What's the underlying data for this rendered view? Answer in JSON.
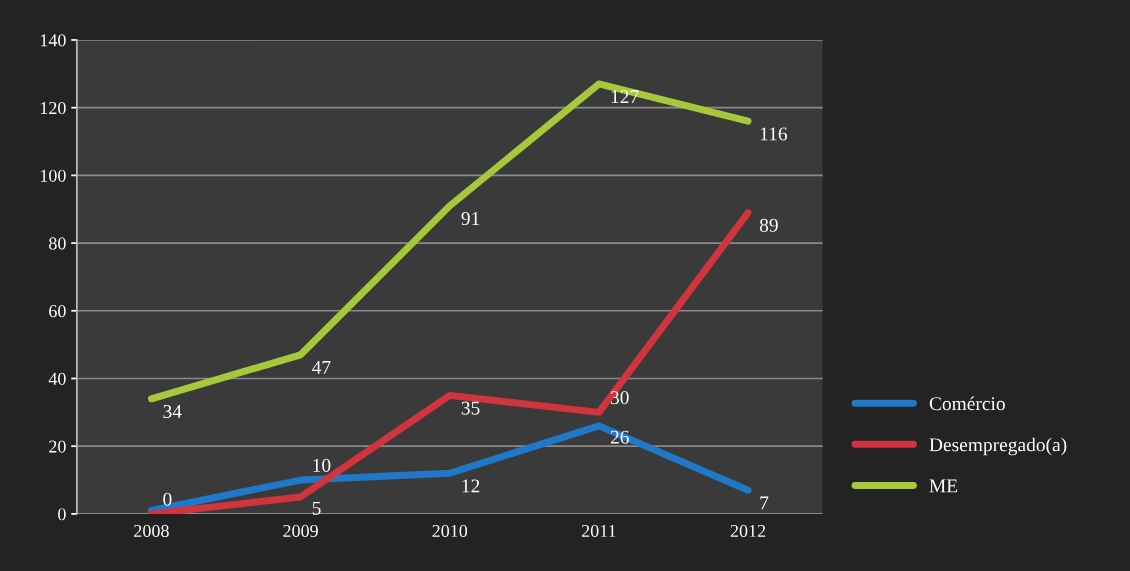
{
  "chart_data": {
    "type": "line",
    "categories": [
      "2008",
      "2009",
      "2010",
      "2011",
      "2012"
    ],
    "series": [
      {
        "name": "Comércio",
        "color": "#1f78c8",
        "values": [
          1,
          10,
          12,
          26,
          7
        ],
        "value_labels": [
          null,
          "10",
          "12",
          "26",
          "7"
        ]
      },
      {
        "name": "Desempregado(a)",
        "color": "#d0343c",
        "values": [
          0,
          5,
          35,
          30,
          89
        ],
        "value_labels": [
          "0",
          "5",
          "35",
          "30",
          "89"
        ]
      },
      {
        "name": "ME",
        "color": "#a8c83c",
        "values": [
          34,
          47,
          91,
          127,
          116
        ],
        "value_labels": [
          "34",
          "47",
          "91",
          "127",
          "116"
        ]
      }
    ],
    "ylim": [
      0,
      140
    ],
    "yticks": [
      0,
      20,
      40,
      60,
      80,
      100,
      120,
      140
    ],
    "grid": "y",
    "legend": "right",
    "marker": "none",
    "line_style": "solid"
  }
}
